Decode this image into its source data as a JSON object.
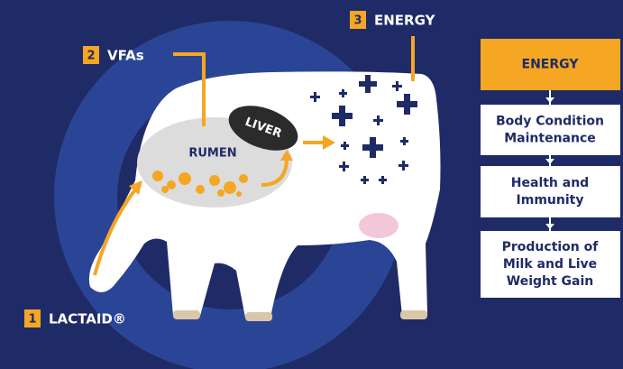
{
  "steps": [
    {
      "number": "1",
      "label": "LACTAID®"
    },
    {
      "number": "2",
      "label": "VFAs"
    },
    {
      "number": "3",
      "label": "ENERGY"
    }
  ],
  "organs": {
    "rumen": "RUMEN",
    "liver": "LIVER"
  },
  "flow": [
    {
      "lines": [
        "ENERGY"
      ]
    },
    {
      "lines": [
        "Body Condition",
        "Maintenance"
      ]
    },
    {
      "lines": [
        "Health and",
        "Immunity"
      ]
    },
    {
      "lines": [
        "Production of",
        "Milk and Live",
        "Weight Gain"
      ]
    }
  ]
}
